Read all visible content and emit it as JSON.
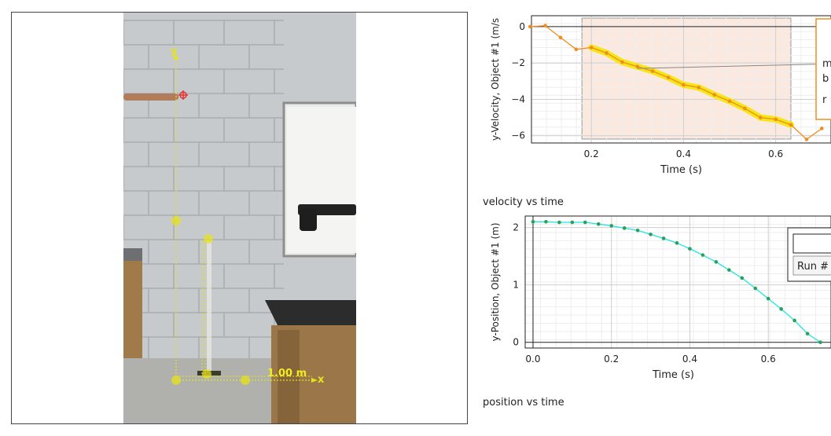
{
  "video": {
    "axis_x_label": "x",
    "axis_y_label": "y",
    "calibration_label": "1.00 m",
    "colors": {
      "overlay": "#e6e21e",
      "tracker": "#e53333",
      "axis": "#d8d22a"
    }
  },
  "velocity_graph": {
    "caption": "velocity vs time",
    "xlabel": "Time (s)",
    "ylabel": "y-Velocity, Object #1 (m/s",
    "fit_box_text": [
      "m",
      "b",
      "r ="
    ],
    "colors": {
      "series": "#f28c1e",
      "highlight": "#f5e61a",
      "selection": "#fbe9e0"
    },
    "chart_data": {
      "type": "line",
      "xlim": [
        0.07,
        0.72
      ],
      "ylim": [
        -6.4,
        0.6
      ],
      "xticks": [
        0.2,
        0.4,
        0.6
      ],
      "xtick_labels": [
        "0.2",
        "0.4",
        "0.6"
      ],
      "yticks": [
        0,
        -2,
        -4,
        -6
      ],
      "ytick_labels": [
        "0",
        "−2",
        "−4",
        "−6"
      ],
      "grid": true,
      "series": [
        {
          "x": [
            0.067,
            0.1,
            0.133,
            0.167,
            0.2,
            0.233,
            0.267,
            0.3,
            0.333,
            0.367,
            0.4,
            0.433,
            0.467,
            0.5,
            0.533,
            0.567,
            0.6,
            0.633,
            0.667,
            0.7
          ],
          "y": [
            0.0,
            0.05,
            -0.6,
            -1.25,
            -1.15,
            -1.45,
            -1.95,
            -2.2,
            -2.45,
            -2.8,
            -3.2,
            -3.35,
            -3.75,
            -4.1,
            -4.5,
            -5.0,
            -5.1,
            -5.4,
            -6.2,
            -5.6
          ]
        }
      ],
      "selection_range": [
        0.2,
        0.633
      ]
    }
  },
  "position_graph": {
    "caption": "position vs time",
    "xlabel": "Time (s)",
    "ylabel": "y-Position, Object #1 (m)",
    "legend_run_label": "Run #",
    "colors": {
      "series": "#1fe6e6",
      "marker": "#2aa05a"
    },
    "chart_data": {
      "type": "line",
      "xlim": [
        -0.02,
        0.76
      ],
      "ylim": [
        -0.1,
        2.2
      ],
      "xticks": [
        0.0,
        0.2,
        0.4,
        0.6
      ],
      "xtick_labels": [
        "0.0",
        "0.2",
        "0.4",
        "0.6"
      ],
      "yticks": [
        0,
        1,
        2
      ],
      "ytick_labels": [
        "0",
        "1",
        "2"
      ],
      "grid": true,
      "series": [
        {
          "x": [
            0.0,
            0.033,
            0.067,
            0.1,
            0.133,
            0.167,
            0.2,
            0.233,
            0.267,
            0.3,
            0.333,
            0.367,
            0.4,
            0.433,
            0.467,
            0.5,
            0.533,
            0.567,
            0.6,
            0.633,
            0.667,
            0.7,
            0.733
          ],
          "y": [
            2.1,
            2.1,
            2.09,
            2.09,
            2.09,
            2.06,
            2.03,
            1.99,
            1.95,
            1.88,
            1.81,
            1.73,
            1.63,
            1.52,
            1.4,
            1.26,
            1.12,
            0.94,
            0.76,
            0.58,
            0.38,
            0.15,
            0.0
          ]
        }
      ]
    }
  }
}
